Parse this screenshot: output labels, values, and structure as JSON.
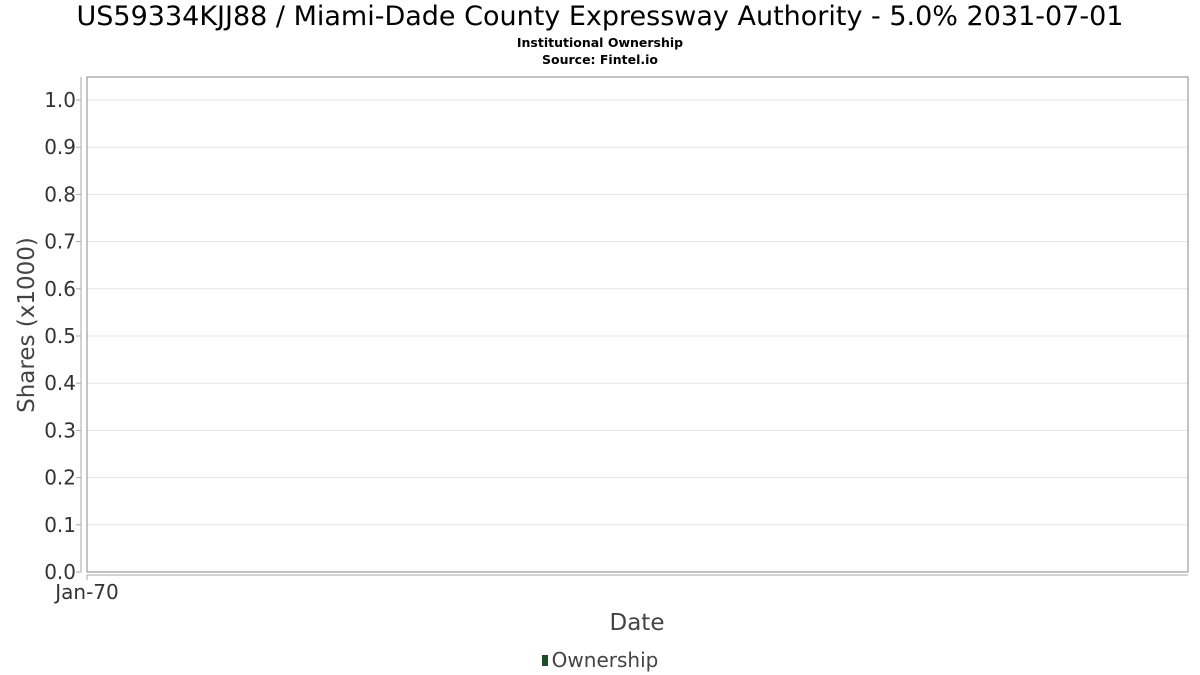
{
  "header": {
    "title": "US59334KJJ88 / Miami-Dade County Expressway Authority - 5.0% 2031-07-01",
    "subtitle": "Institutional Ownership",
    "source": "Source: Fintel.io"
  },
  "chart_data": {
    "type": "bar",
    "title": "US59334KJJ88 / Miami-Dade County Expressway Authority - 5.0% 2031-07-01",
    "subtitle": "Institutional Ownership",
    "xlabel": "Date",
    "ylabel": "Shares (x1000)",
    "ylim": [
      0,
      1.0
    ],
    "y_ticks": [
      "0.0",
      "0.1",
      "0.2",
      "0.3",
      "0.4",
      "0.5",
      "0.6",
      "0.7",
      "0.8",
      "0.9",
      "1.0"
    ],
    "x_ticks": [
      "Jan-70"
    ],
    "categories": [],
    "series": [
      {
        "name": "Ownership",
        "values": [],
        "color": "#1e4d2b"
      }
    ],
    "grid": true,
    "legend_position": "bottom-center"
  },
  "legend": {
    "label": "Ownership",
    "color": "#1e4d2b"
  }
}
